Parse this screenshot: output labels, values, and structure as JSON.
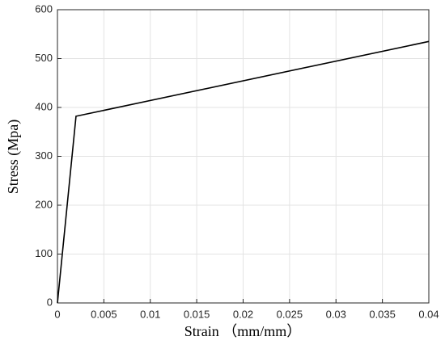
{
  "chart_data": {
    "type": "line",
    "x_label": "Strain （mm/mm）",
    "y_label": "Stress (Mpa)",
    "x": [
      0,
      0.002,
      0.04
    ],
    "series": [
      {
        "color": "#000000",
        "values": [
          0,
          382,
          535
        ]
      }
    ],
    "xlim": [
      0,
      0.04
    ],
    "xticks": [
      0,
      0.005,
      0.01,
      0.015,
      0.02,
      0.025,
      0.03,
      0.035,
      0.04
    ],
    "ylim": [
      0,
      600
    ],
    "yticks": [
      0,
      100,
      200,
      300,
      400,
      500,
      600
    ],
    "grid": true
  }
}
